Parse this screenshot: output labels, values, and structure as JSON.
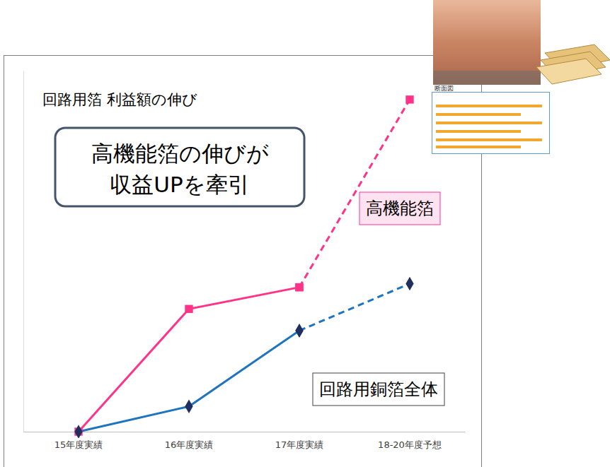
{
  "chart_data": {
    "type": "line",
    "title": "回路用箔 利益額の伸び",
    "annotation": [
      "高機能箔の伸びが",
      "収益UPを牽引"
    ],
    "image_caption": "断面図",
    "categories": [
      "15年度実績",
      "16年度実績",
      "17年度実績",
      "18-20年度予想"
    ],
    "series": [
      {
        "name": "高機能箔",
        "color": "#ff3388",
        "marker": "square",
        "line_style": "solid",
        "values": [
          0,
          34,
          40,
          null
        ]
      },
      {
        "color": "#ff3388",
        "marker": "square",
        "line_style": "dashed",
        "values": [
          null,
          null,
          40,
          92
        ]
      },
      {
        "name": "回路用銅箔全体",
        "color": "#1f74c0",
        "marker": "diamond",
        "line_style": "solid",
        "values": [
          0,
          7,
          28,
          null
        ]
      },
      {
        "color": "#1f74c0",
        "marker": "diamond",
        "line_style": "dashed",
        "values": [
          null,
          null,
          28,
          41
        ]
      }
    ],
    "ylim": [
      0,
      100
    ],
    "tick_labels": "x",
    "grid": false
  }
}
